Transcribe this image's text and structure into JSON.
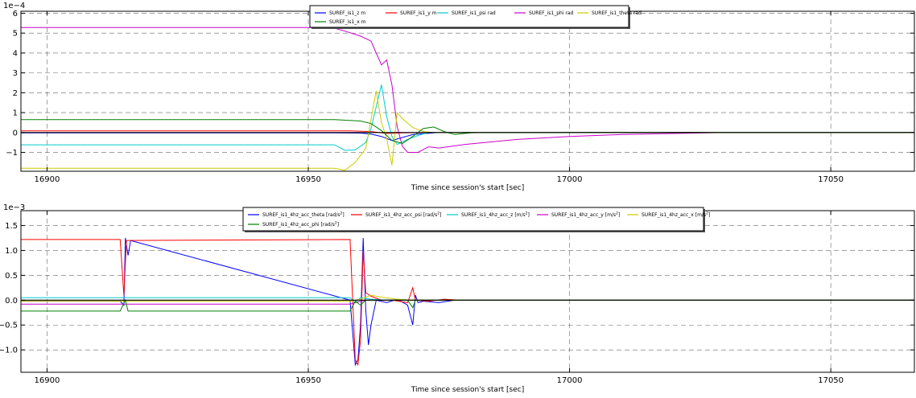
{
  "chart_data": [
    {
      "type": "line",
      "xlabel": "Time since session's start [sec]",
      "ylabel": "",
      "exponent_label": "1e−4",
      "xlim": [
        16895,
        17066
      ],
      "ylim": [
        -1.95,
        6.1
      ],
      "xticks": [
        16900,
        16950,
        17000,
        17050
      ],
      "yticks": [
        -1,
        0,
        1,
        2,
        3,
        4,
        5,
        6
      ],
      "grid": true,
      "legend_position": "top-center",
      "series": [
        {
          "name": "SUREF_is1_z m",
          "color": "#0000ff",
          "points": [
            [
              16895,
              -0.02
            ],
            [
              16955,
              -0.02
            ],
            [
              16960,
              -0.03
            ],
            [
              16962,
              -0.08
            ],
            [
              16964,
              -0.2
            ],
            [
              16966,
              -0.4
            ],
            [
              16968,
              -0.25
            ],
            [
              16970,
              -0.1
            ],
            [
              16975,
              0.0
            ],
            [
              17066,
              0.0
            ]
          ]
        },
        {
          "name": "SUREF_is1_y m",
          "color": "#ff0000",
          "points": [
            [
              16895,
              0.08
            ],
            [
              16958,
              0.08
            ],
            [
              16962,
              0.05
            ],
            [
              16965,
              -0.05
            ],
            [
              16968,
              -0.02
            ],
            [
              16972,
              0.0
            ],
            [
              17066,
              0.0
            ]
          ]
        },
        {
          "name": "SUREF_is1_psi rad",
          "color": "#00cccc",
          "points": [
            [
              16895,
              -0.62
            ],
            [
              16955,
              -0.62
            ],
            [
              16957,
              -0.9
            ],
            [
              16959,
              -0.88
            ],
            [
              16961,
              -0.5
            ],
            [
              16962,
              0.2
            ],
            [
              16963,
              1.3
            ],
            [
              16964,
              2.4
            ],
            [
              16965,
              0.8
            ],
            [
              16966,
              -0.2
            ],
            [
              16967,
              -0.6
            ],
            [
              16969,
              -0.35
            ],
            [
              16971,
              -0.15
            ],
            [
              16973,
              0.0
            ],
            [
              17066,
              0.0
            ]
          ]
        },
        {
          "name": "SUREF_is1_phi rad",
          "color": "#cc00cc",
          "points": [
            [
              16895,
              5.28
            ],
            [
              16952,
              5.28
            ],
            [
              16955,
              5.25
            ],
            [
              16957,
              5.1
            ],
            [
              16960,
              4.85
            ],
            [
              16962,
              4.6
            ],
            [
              16963,
              4.0
            ],
            [
              16964,
              3.4
            ],
            [
              16965,
              3.65
            ],
            [
              16966,
              2.4
            ],
            [
              16967,
              0.3
            ],
            [
              16968,
              -0.7
            ],
            [
              16969,
              -1.0
            ],
            [
              16971,
              -1.0
            ],
            [
              16973,
              -0.72
            ],
            [
              16975,
              -0.78
            ],
            [
              16980,
              -0.6
            ],
            [
              16990,
              -0.35
            ],
            [
              17000,
              -0.2
            ],
            [
              17010,
              -0.1
            ],
            [
              17020,
              -0.05
            ],
            [
              17030,
              0.0
            ],
            [
              17066,
              0.0
            ]
          ]
        },
        {
          "name": "SUREF_is1_theta rad",
          "color": "#cccc00",
          "points": [
            [
              16895,
              -1.8
            ],
            [
              16955,
              -1.8
            ],
            [
              16957,
              -1.9
            ],
            [
              16959,
              -1.5
            ],
            [
              16961,
              -0.8
            ],
            [
              16963,
              2.1
            ],
            [
              16964,
              0.5
            ],
            [
              16965,
              -0.3
            ],
            [
              16966,
              -1.65
            ],
            [
              16967,
              1.0
            ],
            [
              16968,
              0.7
            ],
            [
              16970,
              0.25
            ],
            [
              16972,
              0.05
            ],
            [
              16974,
              0.0
            ],
            [
              17066,
              0.0
            ]
          ]
        },
        {
          "name": "SUREF_is1_x m",
          "color": "#008000",
          "points": [
            [
              16895,
              0.65
            ],
            [
              16955,
              0.65
            ],
            [
              16960,
              0.58
            ],
            [
              16962,
              0.45
            ],
            [
              16964,
              0.1
            ],
            [
              16966,
              -0.4
            ],
            [
              16968,
              -0.55
            ],
            [
              16970,
              -0.2
            ],
            [
              16972,
              0.2
            ],
            [
              16974,
              0.28
            ],
            [
              16976,
              0.05
            ],
            [
              16978,
              -0.1
            ],
            [
              16981,
              -0.02
            ],
            [
              16984,
              0.0
            ],
            [
              17066,
              0.0
            ]
          ]
        }
      ]
    },
    {
      "type": "line",
      "xlabel": "Time since session's start [sec]",
      "ylabel": "",
      "exponent_label": "1e−3",
      "xlim": [
        16895,
        17066
      ],
      "ylim": [
        -1.45,
        1.8
      ],
      "xticks": [
        16900,
        16950,
        17000,
        17050
      ],
      "yticks": [
        -1.0,
        -0.5,
        0.0,
        0.5,
        1.0,
        1.5
      ],
      "ytick_labels": [
        "−1.0",
        "−0.5",
        "0.0",
        "0.5",
        "1.0",
        "1.5"
      ],
      "grid": true,
      "legend_position": "top-center",
      "series": [
        {
          "name": "SUREF_is1_4hz_acc_theta",
          "unit_base": "rad/s",
          "unit_sup": "2",
          "color": "#0000ff",
          "points": [
            [
              16895,
              -0.02
            ],
            [
              16914,
              -0.02
            ],
            [
              16914.7,
              -0.1
            ],
            [
              16915,
              1.25
            ],
            [
              16915.5,
              0.9
            ],
            [
              16916,
              1.2
            ],
            [
              16958,
              0.0
            ],
            [
              16959,
              -1.3
            ],
            [
              16959.5,
              -1.2
            ],
            [
              16960,
              -0.5
            ],
            [
              16960.5,
              1.25
            ],
            [
              16961,
              -0.2
            ],
            [
              16961.5,
              -0.9
            ],
            [
              16962,
              -0.5
            ],
            [
              16963,
              0.0
            ],
            [
              16965,
              -0.05
            ],
            [
              16967,
              0.02
            ],
            [
              16969,
              -0.1
            ],
            [
              16970,
              -0.5
            ],
            [
              16970.5,
              0.1
            ],
            [
              16971,
              -0.05
            ],
            [
              16972,
              -0.02
            ],
            [
              16975,
              -0.05
            ],
            [
              16978,
              0.0
            ],
            [
              17066,
              0.0
            ]
          ]
        },
        {
          "name": "SUREF_is1_4hz_acc_psi",
          "unit_base": "rad/s",
          "unit_sup": "2",
          "color": "#ff0000",
          "points": [
            [
              16895,
              1.22
            ],
            [
              16914,
              1.22
            ],
            [
              16914.7,
              0.1
            ],
            [
              16915.2,
              1.2
            ],
            [
              16958,
              1.22
            ],
            [
              16959,
              -1.2
            ],
            [
              16959.5,
              -1.3
            ],
            [
              16960,
              -0.8
            ],
            [
              16960.5,
              1.0
            ],
            [
              16961,
              0.15
            ],
            [
              16962,
              0.08
            ],
            [
              16964,
              0.0
            ],
            [
              16966,
              0.0
            ],
            [
              16969,
              -0.05
            ],
            [
              16970,
              0.25
            ],
            [
              16970.5,
              0.0
            ],
            [
              16973,
              -0.02
            ],
            [
              16976,
              0.02
            ],
            [
              16979,
              0.0
            ],
            [
              17066,
              0.0
            ]
          ]
        },
        {
          "name": "SUREF_is1_4hz_acc_z",
          "unit_base": "m/s",
          "unit_sup": "2",
          "color": "#00cccc",
          "points": [
            [
              16895,
              0.05
            ],
            [
              16958,
              0.05
            ],
            [
              16959,
              -0.05
            ],
            [
              16960,
              0.05
            ],
            [
              16962,
              0.02
            ],
            [
              16965,
              0.0
            ],
            [
              17066,
              0.0
            ]
          ]
        },
        {
          "name": "SUREF_is1_4hz_acc_y",
          "unit_base": "m/s",
          "unit_sup": "2",
          "color": "#cc00cc",
          "points": [
            [
              16895,
              -0.08
            ],
            [
              16958,
              -0.08
            ],
            [
              16959,
              -0.05
            ],
            [
              16961,
              0.0
            ],
            [
              17066,
              0.0
            ]
          ]
        },
        {
          "name": "SUREF_is1_4hz_acc_x",
          "unit_base": "m/s",
          "unit_sup": "2",
          "color": "#cccc00",
          "points": [
            [
              16895,
              -0.02
            ],
            [
              16958,
              -0.02
            ],
            [
              16960,
              0.02
            ],
            [
              16962,
              0.1
            ],
            [
              16964,
              0.06
            ],
            [
              16967,
              0.02
            ],
            [
              16970,
              0.0
            ],
            [
              17066,
              0.0
            ]
          ]
        },
        {
          "name": "SUREF_is1_4hz_acc_phi",
          "unit_base": "rad/s",
          "unit_sup": "2",
          "color": "#008000",
          "points": [
            [
              16895,
              -0.22
            ],
            [
              16914,
              -0.22
            ],
            [
              16915,
              0.0
            ],
            [
              16915.5,
              -0.22
            ],
            [
              16958,
              -0.22
            ],
            [
              16959,
              -0.02
            ],
            [
              16960,
              -0.1
            ],
            [
              16961,
              0.0
            ],
            [
              16969,
              0.0
            ],
            [
              16970,
              -0.15
            ],
            [
              16970.5,
              0.0
            ],
            [
              17066,
              0.0
            ]
          ]
        }
      ]
    }
  ]
}
